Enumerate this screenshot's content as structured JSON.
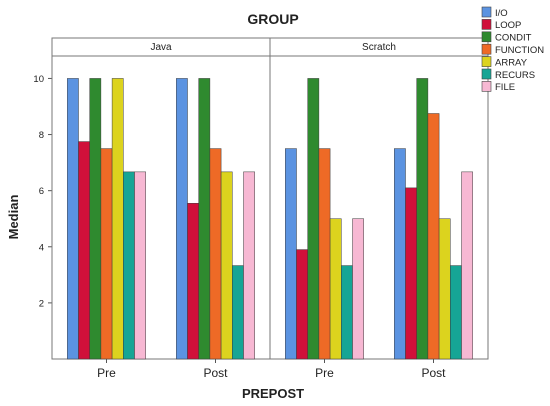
{
  "chart_data": {
    "type": "bar",
    "title": "GROUP",
    "xlabel": "PREPOST",
    "ylabel": "Median",
    "ylim": [
      0,
      10.8
    ],
    "yticks": [
      2,
      4,
      6,
      8,
      10
    ],
    "grid": false,
    "legend_position": "top-right",
    "panels": [
      {
        "name": "Java",
        "categories": [
          "Pre",
          "Post"
        ],
        "series": [
          {
            "name": "I/O",
            "values": [
              10.0,
              10.0
            ]
          },
          {
            "name": "LOOP",
            "values": [
              7.75,
              5.55
            ]
          },
          {
            "name": "CONDIT",
            "values": [
              10.0,
              10.0
            ]
          },
          {
            "name": "FUNCTION",
            "values": [
              7.5,
              7.5
            ]
          },
          {
            "name": "ARRAY",
            "values": [
              10.0,
              6.67
            ]
          },
          {
            "name": "RECURS",
            "values": [
              6.67,
              3.33
            ]
          },
          {
            "name": "FILE",
            "values": [
              6.67,
              6.67
            ]
          }
        ]
      },
      {
        "name": "Scratch",
        "categories": [
          "Pre",
          "Post"
        ],
        "series": [
          {
            "name": "I/O",
            "values": [
              7.5,
              7.5
            ]
          },
          {
            "name": "LOOP",
            "values": [
              3.9,
              6.1
            ]
          },
          {
            "name": "CONDIT",
            "values": [
              10.0,
              10.0
            ]
          },
          {
            "name": "FUNCTION",
            "values": [
              7.5,
              8.75
            ]
          },
          {
            "name": "ARRAY",
            "values": [
              5.0,
              5.0
            ]
          },
          {
            "name": "RECURS",
            "values": [
              3.33,
              3.33
            ]
          },
          {
            "name": "FILE",
            "values": [
              5.0,
              6.67
            ]
          }
        ]
      }
    ],
    "legend": [
      {
        "name": "I/O",
        "color": "#5b93e1"
      },
      {
        "name": "LOOP",
        "color": "#d0103a"
      },
      {
        "name": "CONDIT",
        "color": "#2f8a2f"
      },
      {
        "name": "FUNCTION",
        "color": "#ee6a26"
      },
      {
        "name": "ARRAY",
        "color": "#dcd31e"
      },
      {
        "name": "RECURS",
        "color": "#16a595"
      },
      {
        "name": "FILE",
        "color": "#f7b8d3"
      }
    ]
  }
}
